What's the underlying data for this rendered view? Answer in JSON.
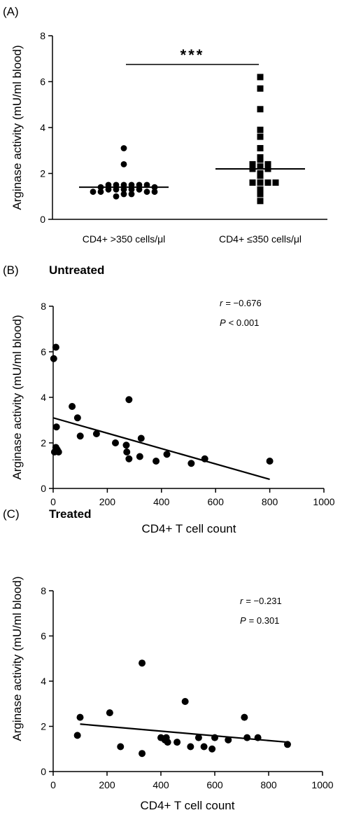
{
  "chart_data": [
    {
      "panel_label": "(A)",
      "title": "",
      "type": "scatter",
      "ylabel": "Arginase activity (mU/ml blood)",
      "xlabel": "",
      "ylim": [
        0,
        8
      ],
      "yticks": [
        0,
        2,
        4,
        6,
        8
      ],
      "categories": [
        "CD4+ >350 cells/μl",
        "CD4+ ≤350 cells/μl"
      ],
      "significance": "***",
      "series": [
        {
          "marker": "circle",
          "median": 1.4,
          "values": [
            3.1,
            2.4,
            1.5,
            1.5,
            1.5,
            1.5,
            1.5,
            1.5,
            1.4,
            1.4,
            1.3,
            1.3,
            1.3,
            1.3,
            1.3,
            1.2,
            1.2,
            1.2,
            1.2,
            1.1,
            1.1,
            1.0
          ]
        },
        {
          "marker": "square",
          "median": 2.2,
          "values": [
            6.2,
            5.7,
            4.8,
            3.9,
            3.6,
            3.1,
            2.7,
            2.6,
            2.4,
            2.4,
            2.3,
            2.2,
            2.2,
            2.0,
            1.9,
            1.6,
            1.6,
            1.6,
            1.6,
            1.3,
            1.1,
            0.8
          ]
        }
      ]
    },
    {
      "panel_label": "(B)",
      "title": "Untreated",
      "type": "scatter",
      "ylabel": "Arginase activity (mU/ml blood)",
      "xlabel": "CD4+ T cell count",
      "xlim": [
        0,
        1000
      ],
      "ylim": [
        0,
        8
      ],
      "xticks": [
        0,
        200,
        400,
        600,
        800,
        1000
      ],
      "yticks": [
        0,
        2,
        4,
        6,
        8
      ],
      "stats": {
        "r_label": "r",
        "r_value": "= −0.676",
        "p_label": "P",
        "p_value": "< 0.001"
      },
      "fit": {
        "x": [
          0,
          800
        ],
        "y": [
          3.1,
          0.4
        ]
      },
      "points": [
        {
          "x": 2,
          "y": 5.7
        },
        {
          "x": 10,
          "y": 6.2
        },
        {
          "x": 5,
          "y": 1.6
        },
        {
          "x": 10,
          "y": 1.8
        },
        {
          "x": 12,
          "y": 2.7
        },
        {
          "x": 15,
          "y": 1.7
        },
        {
          "x": 20,
          "y": 1.6
        },
        {
          "x": 70,
          "y": 3.6
        },
        {
          "x": 90,
          "y": 3.1
        },
        {
          "x": 100,
          "y": 2.3
        },
        {
          "x": 160,
          "y": 2.4
        },
        {
          "x": 230,
          "y": 2.0
        },
        {
          "x": 270,
          "y": 1.9
        },
        {
          "x": 272,
          "y": 1.6
        },
        {
          "x": 280,
          "y": 3.9
        },
        {
          "x": 280,
          "y": 1.3
        },
        {
          "x": 320,
          "y": 1.4
        },
        {
          "x": 325,
          "y": 2.2
        },
        {
          "x": 380,
          "y": 1.2
        },
        {
          "x": 420,
          "y": 1.5
        },
        {
          "x": 510,
          "y": 1.1
        },
        {
          "x": 560,
          "y": 1.3
        },
        {
          "x": 800,
          "y": 1.2
        }
      ]
    },
    {
      "panel_label": "(C)",
      "title": "Treated",
      "type": "scatter",
      "ylabel": "Arginase activity (mU/ml blood)",
      "xlabel": "CD4+ T cell count",
      "xlim": [
        0,
        1000
      ],
      "ylim": [
        0,
        8
      ],
      "xticks": [
        0,
        200,
        400,
        600,
        800,
        1000
      ],
      "yticks": [
        0,
        2,
        4,
        6,
        8
      ],
      "stats": {
        "r_label": "r",
        "r_value": "= −0.231",
        "p_label": "P",
        "p_value": "= 0.301"
      },
      "fit": {
        "x": [
          100,
          870
        ],
        "y": [
          2.1,
          1.3
        ]
      },
      "points": [
        {
          "x": 90,
          "y": 1.6
        },
        {
          "x": 100,
          "y": 2.4
        },
        {
          "x": 210,
          "y": 2.6
        },
        {
          "x": 250,
          "y": 1.1
        },
        {
          "x": 330,
          "y": 4.8
        },
        {
          "x": 330,
          "y": 0.8
        },
        {
          "x": 400,
          "y": 1.5
        },
        {
          "x": 415,
          "y": 1.4
        },
        {
          "x": 420,
          "y": 1.5
        },
        {
          "x": 425,
          "y": 1.3
        },
        {
          "x": 460,
          "y": 1.3
        },
        {
          "x": 490,
          "y": 3.1
        },
        {
          "x": 510,
          "y": 1.1
        },
        {
          "x": 540,
          "y": 1.5
        },
        {
          "x": 560,
          "y": 1.1
        },
        {
          "x": 590,
          "y": 1.0
        },
        {
          "x": 600,
          "y": 1.5
        },
        {
          "x": 650,
          "y": 1.4
        },
        {
          "x": 710,
          "y": 2.4
        },
        {
          "x": 720,
          "y": 1.5
        },
        {
          "x": 760,
          "y": 1.5
        },
        {
          "x": 870,
          "y": 1.2
        }
      ]
    }
  ]
}
